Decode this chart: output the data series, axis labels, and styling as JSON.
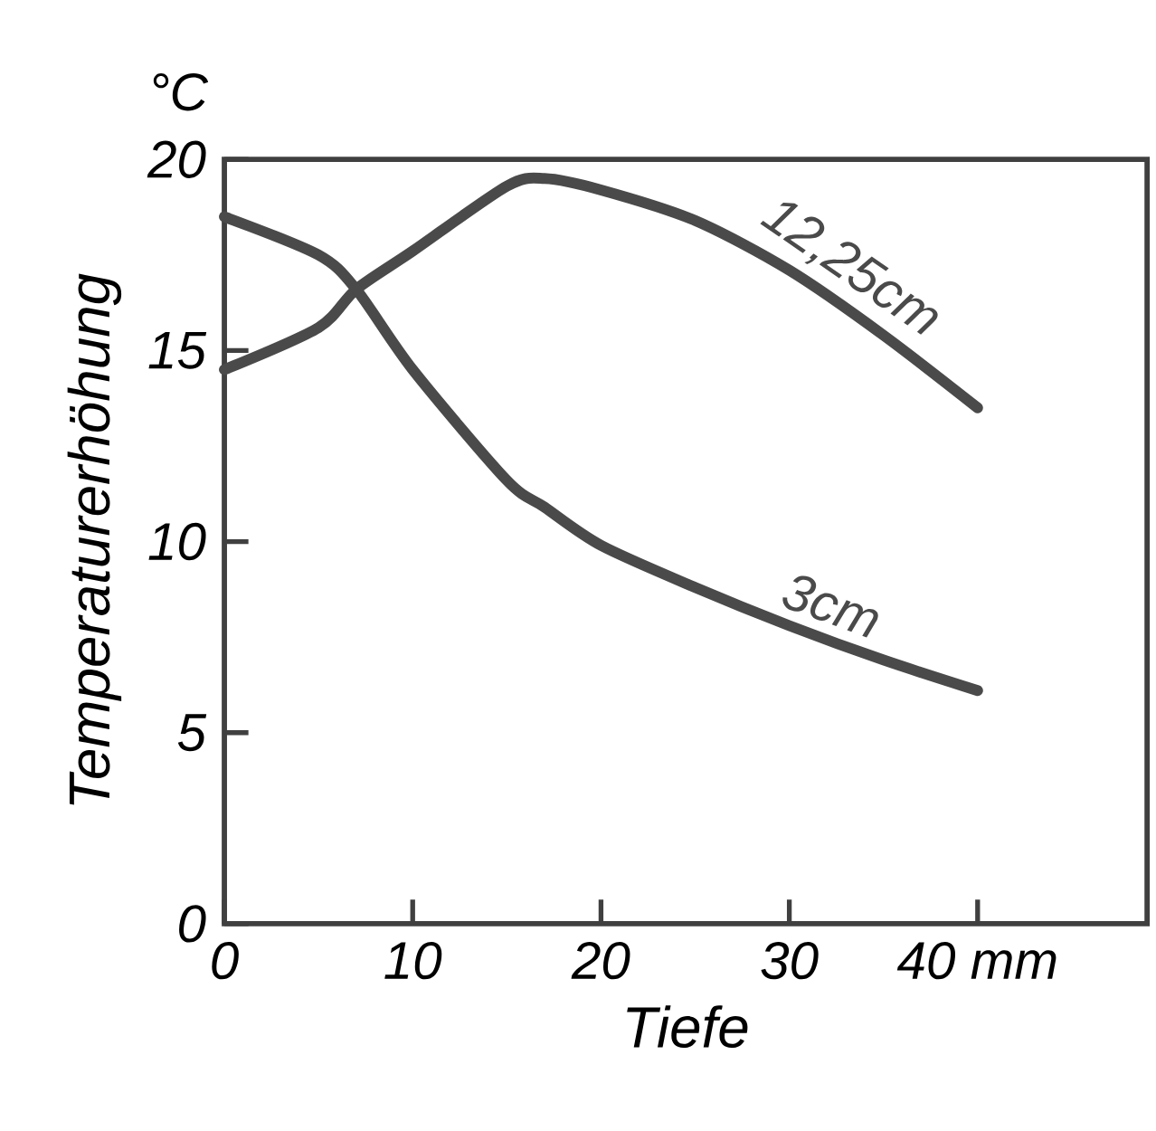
{
  "chart_data": {
    "type": "line",
    "xlabel": "Tiefe",
    "ylabel": "Temperaturerhöhung",
    "annotations": [
      "°C"
    ],
    "xlim": [
      0,
      49
    ],
    "ylim": [
      0,
      20
    ],
    "xticks": [
      0,
      10,
      20,
      30,
      {
        "value": 40,
        "label": "40 mm"
      }
    ],
    "yticks": [
      0,
      5,
      10,
      15,
      20
    ],
    "x": [
      0,
      5,
      7,
      10,
      15,
      17,
      20,
      25,
      30,
      35,
      40
    ],
    "series": [
      {
        "name": "12,25cm",
        "color": "#4a4a4a",
        "values": [
          14.5,
          15.6,
          16.6,
          17.6,
          19.3,
          19.5,
          19.2,
          18.4,
          17.1,
          15.4,
          13.5
        ]
      },
      {
        "name": "3cm",
        "color": "#4a4a4a",
        "values": [
          18.5,
          17.5,
          16.6,
          14.5,
          11.6,
          10.9,
          9.9,
          8.8,
          7.8,
          6.9,
          6.1
        ]
      }
    ],
    "grid": false,
    "marker": "none",
    "line_style": "solid"
  }
}
